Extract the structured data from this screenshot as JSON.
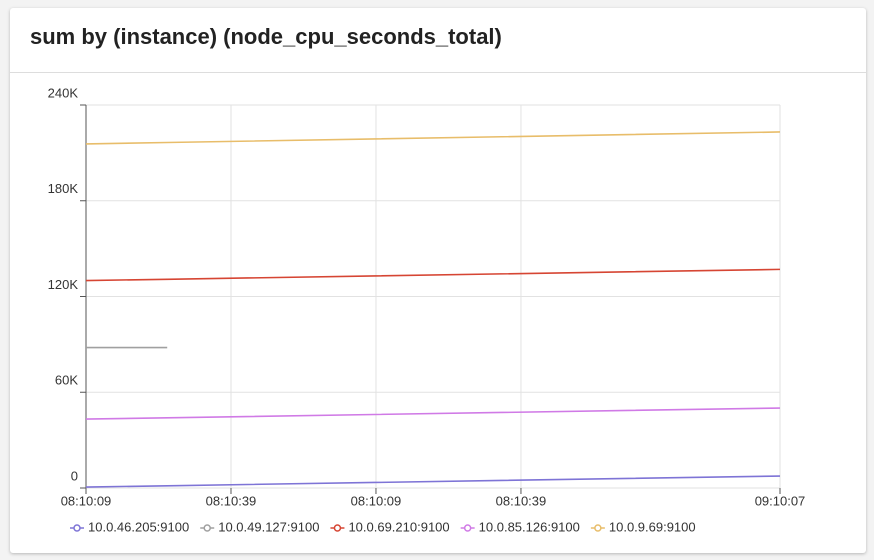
{
  "chart_data": {
    "type": "line",
    "title": "sum by (instance) (node_cpu_seconds_total)",
    "x": [
      0,
      16.8,
      143.6
    ],
    "xlim": [
      0,
      143.6
    ],
    "xticks": [
      {
        "value": 0,
        "label": "08:10:09"
      },
      {
        "value": 30,
        "label": "08:10:39"
      },
      {
        "value": 60,
        "label": "08:10:09"
      },
      {
        "value": 90,
        "label": "08:10:39"
      },
      {
        "value": 143.6,
        "label": "09:10:07"
      }
    ],
    "ylim": [
      0,
      240000
    ],
    "yticks": [
      {
        "value": 0,
        "label": "0"
      },
      {
        "value": 60000,
        "label": "60K"
      },
      {
        "value": 120000,
        "label": "120K"
      },
      {
        "value": 180000,
        "label": "180K"
      },
      {
        "value": 240000,
        "label": "240K"
      }
    ],
    "grid": true,
    "legend": "bottom",
    "series": [
      {
        "name": "10.0.46.205:9100",
        "color": "#7e74d6",
        "values": [
          600,
          1400,
          7500
        ]
      },
      {
        "name": "10.0.49.127:9100",
        "color": "#a0a0a0",
        "values": [
          88000,
          88000,
          null
        ]
      },
      {
        "name": "10.0.69.210:9100",
        "color": "#d64533",
        "values": [
          130000,
          130800,
          137000
        ]
      },
      {
        "name": "10.0.85.126:9100",
        "color": "#d07ae6",
        "values": [
          43200,
          44000,
          50100
        ]
      },
      {
        "name": "10.0.9.69:9100",
        "color": "#e8bd6a",
        "values": [
          215600,
          216500,
          223100
        ]
      }
    ]
  }
}
